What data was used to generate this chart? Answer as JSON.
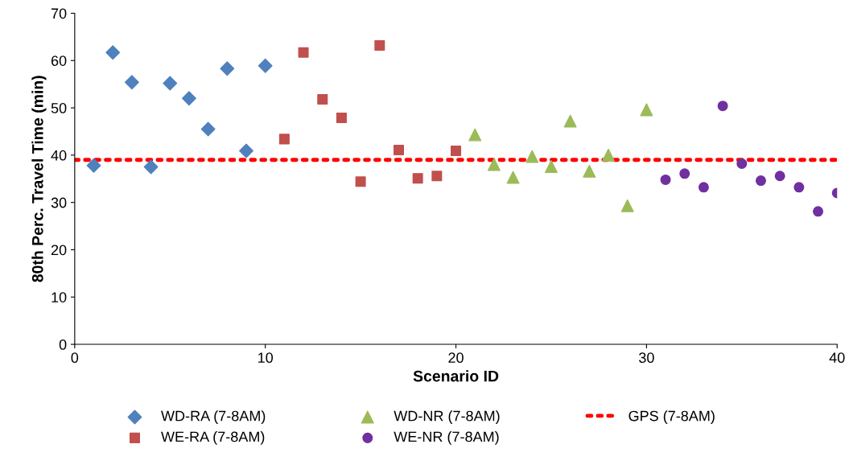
{
  "chart_data": {
    "type": "scatter",
    "xlabel": "Scenario ID",
    "ylabel": "80th Perc. Travel Time (min)",
    "xlim": [
      0,
      40
    ],
    "xticks": [
      0,
      10,
      20,
      30,
      40
    ],
    "ylim": [
      0,
      70
    ],
    "yticks": [
      0,
      10,
      20,
      30,
      40,
      50,
      60,
      70
    ],
    "grid": false,
    "legend": "bottom",
    "series": [
      {
        "name": "WD-RA (7-8AM)",
        "color": "#4f81bd",
        "marker": "diamond",
        "x": [
          1,
          2,
          3,
          4,
          5,
          6,
          7,
          8,
          9,
          10
        ],
        "values": [
          37.8,
          61.7,
          55.4,
          37.5,
          55.2,
          52.0,
          45.5,
          58.3,
          40.9,
          58.9
        ]
      },
      {
        "name": "WE-RA (7-8AM)",
        "color": "#c0504d",
        "marker": "square",
        "x": [
          11,
          12,
          13,
          14,
          15,
          16,
          17,
          18,
          19,
          20
        ],
        "values": [
          43.4,
          61.7,
          51.8,
          47.9,
          34.4,
          63.2,
          41.1,
          35.1,
          35.6,
          40.9
        ]
      },
      {
        "name": "WD-NR (7-8AM)",
        "color": "#9bbb59",
        "marker": "triangle",
        "x": [
          21,
          22,
          23,
          24,
          25,
          26,
          27,
          28,
          29,
          30
        ],
        "values": [
          44.3,
          38.0,
          35.3,
          39.7,
          37.6,
          47.2,
          36.6,
          40.0,
          29.3,
          49.6
        ]
      },
      {
        "name": "WE-NR (7-8AM)",
        "color": "#7030a0",
        "marker": "circle",
        "x": [
          31,
          32,
          33,
          34,
          35,
          36,
          37,
          38,
          39,
          40
        ],
        "values": [
          34.8,
          36.1,
          33.2,
          50.4,
          38.2,
          34.6,
          35.6,
          33.2,
          28.1,
          32.0
        ]
      },
      {
        "name": "GPS (7-8AM)",
        "color": "#ff0000",
        "type": "line",
        "line_style": "dotted",
        "marker": "none",
        "x": [
          0,
          40
        ],
        "values": [
          39.0,
          39.0
        ]
      }
    ]
  }
}
